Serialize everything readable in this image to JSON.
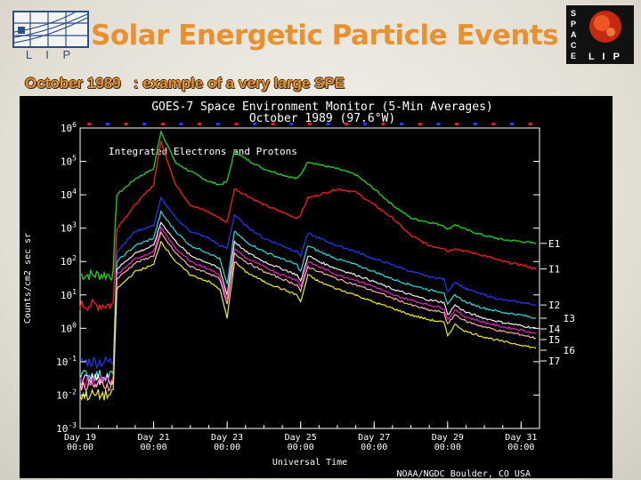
{
  "slide": {
    "title": "Solar Energetic Particle Events",
    "subtitle": "October 1989   : example of a very large SPE",
    "logo_left_text": "L I P",
    "logo_right_letters": [
      "S",
      "P",
      "A",
      "C",
      "E"
    ],
    "logo_right_text": "L I P"
  },
  "chart_data": {
    "type": "line",
    "title": "GOES-7 Space Environment Monitor (5-Min Averages)",
    "subtitle": "October 1989 (97.6°W)",
    "inner_label": "Integrated Electrons and Protons",
    "xlabel": "Universal Time",
    "ylabel": "Counts/cm2 sec sr",
    "credit": "NOAA/NGDC Boulder, CO USA",
    "y_scale": "log",
    "ylim": [
      0.001,
      1000000
    ],
    "y_ticks": [
      "10^-3",
      "10^-2",
      "10^-1",
      "10^0",
      "10^1",
      "10^2",
      "10^3",
      "10^4",
      "10^5",
      "10^6"
    ],
    "xlim": [
      19,
      31.5
    ],
    "x_ticks": [
      {
        "day": 19,
        "label": "Day 19",
        "time": "00:00"
      },
      {
        "day": 21,
        "label": "Day 21",
        "time": "00:00"
      },
      {
        "day": 23,
        "label": "Day 23",
        "time": "00:00"
      },
      {
        "day": 25,
        "label": "Day 25",
        "time": "00:00"
      },
      {
        "day": 27,
        "label": "Day 27",
        "time": "00:00"
      },
      {
        "day": 29,
        "label": "Day 29",
        "time": "00:00"
      },
      {
        "day": 31,
        "label": "Day 31",
        "time": "00:00"
      }
    ],
    "grid": false,
    "legend_position": "right",
    "series": [
      {
        "name": "E1",
        "color": "#22c81e",
        "points": [
          [
            19,
            40
          ],
          [
            19.9,
            40
          ],
          [
            20.0,
            10000
          ],
          [
            20.5,
            30000
          ],
          [
            21.0,
            60000
          ],
          [
            21.2,
            800000
          ],
          [
            21.6,
            90000
          ],
          [
            22.0,
            50000
          ],
          [
            22.5,
            25000
          ],
          [
            22.8,
            20000
          ],
          [
            23.0,
            25000
          ],
          [
            23.2,
            200000
          ],
          [
            23.5,
            120000
          ],
          [
            24.0,
            60000
          ],
          [
            24.5,
            40000
          ],
          [
            24.9,
            30000
          ],
          [
            25.0,
            40000
          ],
          [
            25.2,
            100000
          ],
          [
            25.5,
            80000
          ],
          [
            26.0,
            60000
          ],
          [
            26.5,
            40000
          ],
          [
            27.0,
            15000
          ],
          [
            27.5,
            5000
          ],
          [
            28.0,
            2000
          ],
          [
            28.5,
            1500
          ],
          [
            28.9,
            1200
          ],
          [
            29.0,
            900
          ],
          [
            29.2,
            1300
          ],
          [
            29.5,
            900
          ],
          [
            30.0,
            600
          ],
          [
            30.5,
            450
          ],
          [
            31.0,
            400
          ],
          [
            31.4,
            350
          ]
        ]
      },
      {
        "name": "I1",
        "color": "#ee1c1c",
        "points": [
          [
            19,
            5
          ],
          [
            19.9,
            5
          ],
          [
            20.0,
            1000
          ],
          [
            20.5,
            5000
          ],
          [
            21.0,
            20000
          ],
          [
            21.2,
            400000
          ],
          [
            21.6,
            20000
          ],
          [
            22.0,
            5000
          ],
          [
            22.5,
            3000
          ],
          [
            22.8,
            2000
          ],
          [
            23.0,
            1500
          ],
          [
            23.2,
            15000
          ],
          [
            23.5,
            10000
          ],
          [
            24.0,
            5000
          ],
          [
            24.5,
            3000
          ],
          [
            24.9,
            2000
          ],
          [
            25.0,
            2500
          ],
          [
            25.2,
            8000
          ],
          [
            25.5,
            10000
          ],
          [
            26.0,
            15000
          ],
          [
            26.5,
            12000
          ],
          [
            27.0,
            5000
          ],
          [
            27.5,
            2000
          ],
          [
            28.0,
            600
          ],
          [
            28.5,
            300
          ],
          [
            28.9,
            250
          ],
          [
            29.0,
            200
          ],
          [
            29.2,
            250
          ],
          [
            29.5,
            200
          ],
          [
            30.0,
            150
          ],
          [
            30.5,
            100
          ],
          [
            31.0,
            80
          ],
          [
            31.4,
            60
          ]
        ]
      },
      {
        "name": "I2",
        "color": "#1e3cff",
        "points": [
          [
            19,
            0.1
          ],
          [
            19.9,
            0.1
          ],
          [
            20.0,
            200
          ],
          [
            20.5,
            800
          ],
          [
            21.0,
            1200
          ],
          [
            21.2,
            8000
          ],
          [
            21.6,
            2000
          ],
          [
            22.0,
            800
          ],
          [
            22.5,
            500
          ],
          [
            22.8,
            300
          ],
          [
            23.0,
            250
          ],
          [
            23.2,
            2500
          ],
          [
            23.5,
            1200
          ],
          [
            24.0,
            500
          ],
          [
            24.5,
            300
          ],
          [
            24.9,
            200
          ],
          [
            25.0,
            150
          ],
          [
            25.2,
            700
          ],
          [
            25.5,
            500
          ],
          [
            26.0,
            300
          ],
          [
            26.5,
            200
          ],
          [
            27.0,
            120
          ],
          [
            27.5,
            80
          ],
          [
            28.0,
            50
          ],
          [
            28.5,
            35
          ],
          [
            28.9,
            30
          ],
          [
            29.0,
            12
          ],
          [
            29.2,
            25
          ],
          [
            29.5,
            15
          ],
          [
            30.0,
            10
          ],
          [
            30.5,
            7
          ],
          [
            31.0,
            6
          ],
          [
            31.4,
            5
          ]
        ]
      },
      {
        "name": "I3",
        "color": "#28e0e8",
        "points": [
          [
            19,
            0.04
          ],
          [
            19.9,
            0.04
          ],
          [
            20.0,
            100
          ],
          [
            20.5,
            300
          ],
          [
            21.0,
            500
          ],
          [
            21.2,
            3000
          ],
          [
            21.6,
            800
          ],
          [
            22.0,
            300
          ],
          [
            22.5,
            180
          ],
          [
            22.8,
            120
          ],
          [
            23.0,
            20
          ],
          [
            23.2,
            800
          ],
          [
            23.5,
            400
          ],
          [
            24.0,
            200
          ],
          [
            24.5,
            120
          ],
          [
            24.9,
            80
          ],
          [
            25.0,
            50
          ],
          [
            25.2,
            300
          ],
          [
            25.5,
            200
          ],
          [
            26.0,
            120
          ],
          [
            26.5,
            80
          ],
          [
            27.0,
            50
          ],
          [
            27.5,
            30
          ],
          [
            28.0,
            20
          ],
          [
            28.5,
            14
          ],
          [
            28.9,
            12
          ],
          [
            29.0,
            5
          ],
          [
            29.2,
            10
          ],
          [
            29.5,
            6
          ],
          [
            30.0,
            4
          ],
          [
            30.5,
            3
          ],
          [
            31.0,
            2.5
          ],
          [
            31.4,
            2
          ]
        ]
      },
      {
        "name": "I4",
        "color": "#f0f0f0",
        "points": [
          [
            19,
            0.03
          ],
          [
            19.9,
            0.03
          ],
          [
            20.0,
            60
          ],
          [
            20.5,
            180
          ],
          [
            21.0,
            300
          ],
          [
            21.2,
            1500
          ],
          [
            21.6,
            400
          ],
          [
            22.0,
            150
          ],
          [
            22.5,
            90
          ],
          [
            22.8,
            60
          ],
          [
            23.0,
            10
          ],
          [
            23.2,
            400
          ],
          [
            23.5,
            200
          ],
          [
            24.0,
            100
          ],
          [
            24.5,
            60
          ],
          [
            24.9,
            40
          ],
          [
            25.0,
            25
          ],
          [
            25.2,
            150
          ],
          [
            25.5,
            100
          ],
          [
            26.0,
            60
          ],
          [
            26.5,
            40
          ],
          [
            27.0,
            25
          ],
          [
            27.5,
            15
          ],
          [
            28.0,
            10
          ],
          [
            28.5,
            7
          ],
          [
            28.9,
            6
          ],
          [
            29.0,
            2.5
          ],
          [
            29.2,
            5
          ],
          [
            29.5,
            3
          ],
          [
            30.0,
            2
          ],
          [
            30.5,
            1.5
          ],
          [
            31.0,
            1.2
          ],
          [
            31.4,
            1
          ]
        ]
      },
      {
        "name": "I5",
        "color": "#f020c8",
        "points": [
          [
            19,
            0.025
          ],
          [
            19.9,
            0.025
          ],
          [
            20.0,
            40
          ],
          [
            20.5,
            120
          ],
          [
            21.0,
            200
          ],
          [
            21.2,
            1000
          ],
          [
            21.6,
            250
          ],
          [
            22.0,
            100
          ],
          [
            22.5,
            60
          ],
          [
            22.8,
            40
          ],
          [
            23.0,
            7
          ],
          [
            23.2,
            250
          ],
          [
            23.5,
            130
          ],
          [
            24.0,
            70
          ],
          [
            24.5,
            40
          ],
          [
            24.9,
            28
          ],
          [
            25.0,
            18
          ],
          [
            25.2,
            100
          ],
          [
            25.5,
            70
          ],
          [
            26.0,
            40
          ],
          [
            26.5,
            28
          ],
          [
            27.0,
            18
          ],
          [
            27.5,
            10
          ],
          [
            28.0,
            7
          ],
          [
            28.5,
            5
          ],
          [
            28.9,
            4
          ],
          [
            29.0,
            1.8
          ],
          [
            29.2,
            3.5
          ],
          [
            29.5,
            2.2
          ],
          [
            30.0,
            1.5
          ],
          [
            30.5,
            1.1
          ],
          [
            31.0,
            0.9
          ],
          [
            31.4,
            0.7
          ]
        ]
      },
      {
        "name": "I6",
        "color": "#ffb0b0",
        "points": [
          [
            19,
            0.02
          ],
          [
            19.9,
            0.02
          ],
          [
            20.0,
            30
          ],
          [
            20.5,
            90
          ],
          [
            21.0,
            150
          ],
          [
            21.2,
            700
          ],
          [
            21.6,
            180
          ],
          [
            22.0,
            70
          ],
          [
            22.5,
            45
          ],
          [
            22.8,
            30
          ],
          [
            23.0,
            5
          ],
          [
            23.2,
            180
          ],
          [
            23.5,
            100
          ],
          [
            24.0,
            50
          ],
          [
            24.5,
            30
          ],
          [
            24.9,
            20
          ],
          [
            25.0,
            13
          ],
          [
            25.2,
            70
          ],
          [
            25.5,
            50
          ],
          [
            26.0,
            30
          ],
          [
            26.5,
            20
          ],
          [
            27.0,
            13
          ],
          [
            27.5,
            8
          ],
          [
            28.0,
            5
          ],
          [
            28.5,
            3.5
          ],
          [
            28.9,
            3
          ],
          [
            29.0,
            1.3
          ],
          [
            29.2,
            2.6
          ],
          [
            29.5,
            1.6
          ],
          [
            30.0,
            1.1
          ],
          [
            30.5,
            0.8
          ],
          [
            31.0,
            0.65
          ],
          [
            31.4,
            0.5
          ]
        ]
      },
      {
        "name": "I7",
        "color": "#f0f020",
        "points": [
          [
            19,
            0.01
          ],
          [
            19.9,
            0.01
          ],
          [
            20.0,
            15
          ],
          [
            20.5,
            50
          ],
          [
            21.0,
            80
          ],
          [
            21.2,
            400
          ],
          [
            21.6,
            100
          ],
          [
            22.0,
            40
          ],
          [
            22.5,
            25
          ],
          [
            22.8,
            15
          ],
          [
            23.0,
            2
          ],
          [
            23.2,
            100
          ],
          [
            23.5,
            50
          ],
          [
            24.0,
            25
          ],
          [
            24.5,
            15
          ],
          [
            24.9,
            10
          ],
          [
            25.0,
            6
          ],
          [
            25.2,
            40
          ],
          [
            25.5,
            25
          ],
          [
            26.0,
            15
          ],
          [
            26.5,
            10
          ],
          [
            27.0,
            6
          ],
          [
            27.5,
            4
          ],
          [
            28.0,
            2.5
          ],
          [
            28.5,
            1.8
          ],
          [
            28.9,
            1.5
          ],
          [
            29.0,
            0.6
          ],
          [
            29.2,
            1.3
          ],
          [
            29.5,
            0.8
          ],
          [
            30.0,
            0.55
          ],
          [
            30.5,
            0.4
          ],
          [
            31.0,
            0.32
          ],
          [
            31.4,
            0.25
          ]
        ]
      }
    ],
    "top_markers": {
      "colors": [
        "#ee1c1c",
        "#1e3cff"
      ]
    }
  }
}
